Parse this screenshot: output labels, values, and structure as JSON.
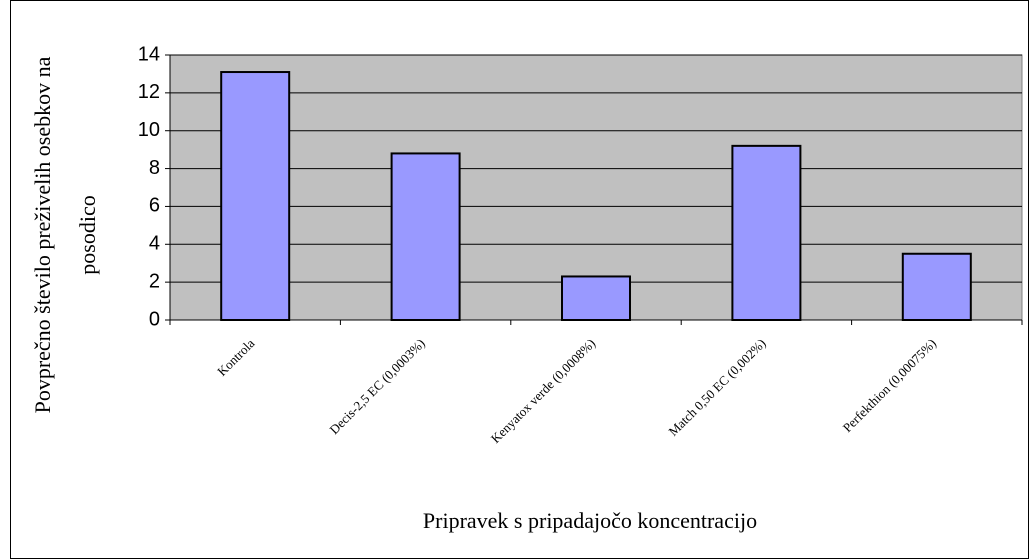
{
  "chart_data": {
    "type": "bar",
    "xlabel": "Pripravek s pripadajočo koncentracijo",
    "ylabel": [
      "Povprečno število preživelih osebkov na",
      "posodico"
    ],
    "categories": [
      "Kontrola",
      "Decis-2,5 EC (0,0003%)",
      "Kenyatox verde (0,0008%)",
      "Match 0,50 EC (0,002%)",
      "Perfekthion (0,00075%)"
    ],
    "values": [
      13.1,
      8.8,
      2.3,
      9.2,
      3.5
    ],
    "color": "#9999ff",
    "ylim": [
      0,
      14
    ],
    "yticks": [
      0,
      2,
      4,
      6,
      8,
      10,
      12,
      14
    ],
    "grid": true
  }
}
